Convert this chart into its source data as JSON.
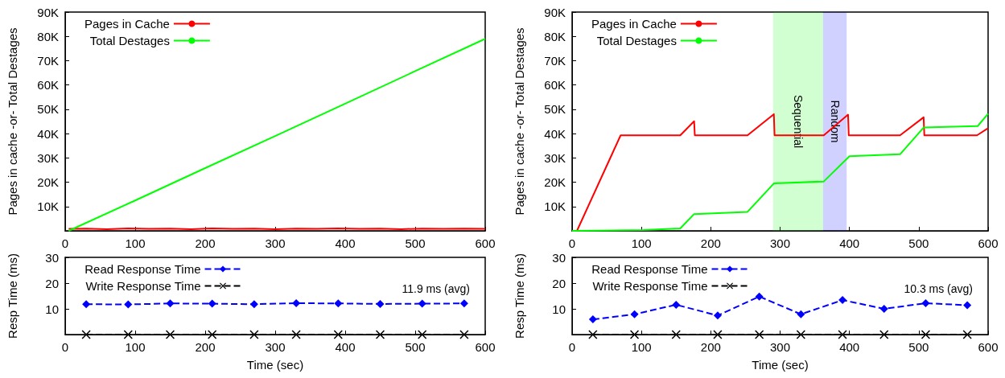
{
  "chart_data": [
    {
      "type": "line",
      "ylabel": "Pages in cache -or- Total Destages",
      "legend": "top left",
      "grid": false,
      "xlim": [
        0,
        600
      ],
      "xticks": [
        0,
        100,
        200,
        300,
        400,
        500,
        600
      ],
      "ylim": [
        0,
        90000
      ],
      "yticks": [
        {
          "value": 10000,
          "label": "10K"
        },
        {
          "value": 20000,
          "label": "20K"
        },
        {
          "value": 30000,
          "label": "30K"
        },
        {
          "value": 40000,
          "label": "40K"
        },
        {
          "value": 50000,
          "label": "50K"
        },
        {
          "value": 60000,
          "label": "60K"
        },
        {
          "value": 70000,
          "label": "70K"
        },
        {
          "value": 80000,
          "label": "80K"
        },
        {
          "value": 90000,
          "label": "90K"
        }
      ],
      "series": [
        {
          "name": "Pages in Cache",
          "color": "#ff0000",
          "x": [
            5,
            30,
            60,
            90,
            120,
            150,
            180,
            210,
            240,
            270,
            300,
            330,
            360,
            390,
            420,
            450,
            480,
            510,
            540,
            570,
            600
          ],
          "values": [
            800,
            900,
            700,
            1000,
            800,
            900,
            700,
            1000,
            800,
            900,
            700,
            900,
            800,
            1000,
            800,
            900,
            700,
            900,
            800,
            900,
            800
          ]
        },
        {
          "name": "Total Destages",
          "color": "#00ff00",
          "x": [
            5,
            100,
            200,
            300,
            400,
            500,
            600
          ],
          "values": [
            0,
            12500,
            25800,
            39000,
            52300,
            65700,
            79000
          ]
        }
      ]
    },
    {
      "type": "line",
      "ylabel": "Pages in cache -or- Total Destages",
      "legend": "top left",
      "grid": false,
      "xlim": [
        0,
        600
      ],
      "xticks": [
        0,
        100,
        200,
        300,
        400,
        500,
        600
      ],
      "ylim": [
        0,
        90000
      ],
      "yticks": [
        {
          "value": 10000,
          "label": "10K"
        },
        {
          "value": 20000,
          "label": "20K"
        },
        {
          "value": 30000,
          "label": "30K"
        },
        {
          "value": 40000,
          "label": "40K"
        },
        {
          "value": 50000,
          "label": "50K"
        },
        {
          "value": 60000,
          "label": "60K"
        },
        {
          "value": 70000,
          "label": "70K"
        },
        {
          "value": 80000,
          "label": "80K"
        },
        {
          "value": 90000,
          "label": "90K"
        }
      ],
      "bands": [
        {
          "axis": "x",
          "from": 290,
          "to": 362,
          "label": "Sequential",
          "color": "#00ff00"
        },
        {
          "axis": "x",
          "from": 362,
          "to": 396,
          "label": "Random",
          "color": "#0000ff"
        }
      ],
      "series": [
        {
          "name": "Pages in Cache",
          "color": "#ff0000",
          "x": [
            7,
            70,
            156,
            176,
            177,
            253,
            291,
            292,
            363,
            398,
            399,
            473,
            507,
            508,
            584,
            600
          ],
          "values": [
            0,
            39300,
            39300,
            45100,
            39300,
            39300,
            48000,
            39300,
            39300,
            47800,
            39300,
            39300,
            46700,
            39300,
            39300,
            42200
          ]
        },
        {
          "name": "Total Destages",
          "color": "#00ff00",
          "x": [
            0,
            103,
            156,
            176,
            253,
            291,
            363,
            400,
            473,
            507,
            585,
            600
          ],
          "values": [
            0,
            300,
            1000,
            6900,
            7800,
            19500,
            20300,
            30700,
            31500,
            42500,
            43100,
            48200
          ]
        }
      ]
    },
    {
      "type": "line",
      "ylabel": "Resp Time (ms)",
      "xlabel": "Time (sec)",
      "legend": "top left",
      "grid": false,
      "xlim": [
        0,
        600
      ],
      "xticks": [
        0,
        100,
        200,
        300,
        400,
        500,
        600
      ],
      "ylim": [
        0,
        30
      ],
      "yticks": [
        10,
        20,
        30
      ],
      "annotations": [
        "11.9 ms (avg)"
      ],
      "series": [
        {
          "name": "Read Response Time",
          "color": "#0000ff",
          "marker": "diamond",
          "line_style": "dashed",
          "x": [
            30,
            90,
            150,
            210,
            270,
            330,
            390,
            450,
            510,
            570
          ],
          "values": [
            11.8,
            11.7,
            12.1,
            12.0,
            11.8,
            12.2,
            12.1,
            11.9,
            12.0,
            12.1
          ]
        },
        {
          "name": "Write Response Time",
          "color": "#000000",
          "marker": "cross",
          "line_style": "dashed",
          "x": [
            30,
            90,
            150,
            210,
            270,
            330,
            390,
            450,
            510,
            570
          ],
          "values": [
            0,
            0,
            0,
            0,
            0,
            0,
            0,
            0,
            0,
            0
          ]
        }
      ]
    },
    {
      "type": "line",
      "ylabel": "Resp Time (ms)",
      "xlabel": "Time (sec)",
      "legend": "top left",
      "grid": false,
      "xlim": [
        0,
        600
      ],
      "xticks": [
        0,
        100,
        200,
        300,
        400,
        500,
        600
      ],
      "ylim": [
        0,
        30
      ],
      "yticks": [
        10,
        20,
        30
      ],
      "annotations": [
        "10.3 ms (avg)"
      ],
      "series": [
        {
          "name": "Read Response Time",
          "color": "#0000ff",
          "marker": "diamond",
          "line_style": "dashed",
          "x": [
            30,
            90,
            150,
            210,
            270,
            330,
            390,
            450,
            510,
            570
          ],
          "values": [
            5.9,
            7.9,
            11.6,
            7.4,
            14.8,
            7.9,
            13.4,
            10.0,
            12.2,
            11.4
          ]
        },
        {
          "name": "Write Response Time",
          "color": "#000000",
          "marker": "cross",
          "line_style": "dashed",
          "x": [
            30,
            90,
            150,
            210,
            270,
            330,
            390,
            450,
            510,
            570
          ],
          "values": [
            0,
            0,
            0,
            0,
            0,
            0,
            0,
            0,
            0,
            0
          ]
        }
      ]
    }
  ]
}
